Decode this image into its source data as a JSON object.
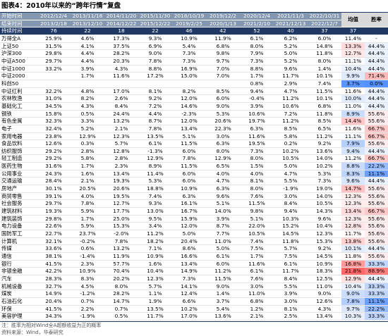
{
  "title": "图表4：2010年以来的“跨年行情”复盘",
  "table": {
    "columns": [
      "开始时间",
      "2012/12/4",
      "2013/11/18",
      "2014/11/20",
      "2015/11/30",
      "2018/10/19",
      "2019/12/2",
      "2020/12/4",
      "2021/11/3",
      "2022/10/31",
      "均值",
      "胜率"
    ],
    "end_row": [
      "结束时间",
      "2013/2/18",
      "2013/12/10",
      "2014/12/22",
      "2015/12/22",
      "2019/2/25",
      "2020/1/13",
      "2021/2/10",
      "2021/12/13",
      "2022/12/7"
    ],
    "duration_row": [
      "持续时间",
      "76",
      "22",
      "18",
      "22",
      "46",
      "42",
      "52",
      "40",
      "37",
      "37"
    ],
    "rows": [
      [
        "万得全A",
        "25.9%",
        "4.6%",
        "17.3%",
        "9.3%",
        "10.9%",
        "11.9%",
        "6.1%",
        "6.2%",
        "6.0%",
        "11.4%",
        "-"
      ],
      [
        "上证50",
        "31.5%",
        "4.1%",
        "37.5%",
        "6.9%",
        "5.4%",
        "6.8%",
        "8.0%",
        "5.2%",
        "14.8%",
        "13.3%",
        "44.4%"
      ],
      [
        "沪深300",
        "29.8%",
        "4.4%",
        "28.2%",
        "9.0%",
        "7.3%",
        "9.8%",
        "7.9%",
        "5.0%",
        "11.8%",
        "12.7%",
        "44.4%"
      ],
      [
        "中证A500",
        "29.7%",
        "4.4%",
        "20.3%",
        "7.8%",
        "7.3%",
        "9.7%",
        "7.3%",
        "5.2%",
        "8.0%",
        "11.1%",
        "44.4%"
      ],
      [
        "中证1000",
        "33.2%",
        "3.9%",
        "4.3%",
        "8.8%",
        "16.9%",
        "7.0%",
        "8.8%",
        "9.6%",
        "1.4%",
        "10.4%",
        "44.4%"
      ],
      [
        "中证2000",
        null,
        "1.7%",
        "11.6%",
        "17.2%",
        "15.0%",
        "7.0%",
        "1.7%",
        "11.7%",
        "10.1%",
        "9.9%",
        "71.4%"
      ],
      [
        "科创50",
        null,
        null,
        null,
        null,
        null,
        null,
        "0.8%",
        "2.9%",
        "7.4%",
        "3.7%",
        "0.0%"
      ],
      [
        "中证红利",
        "32.2%",
        "4.8%",
        "17.0%",
        "8.1%",
        "8.2%",
        "8.5%",
        "9.4%",
        "4.7%",
        "11.5%",
        "11.6%",
        "44.4%"
      ],
      [
        "农林牧渔",
        "31.0%",
        "8.2%",
        "2.6%",
        "9.2%",
        "12.0%",
        "6.0%",
        "-0.4%",
        "11.2%",
        "10.1%",
        "10.0%",
        "44.4%"
      ],
      [
        "基础化工",
        "34.5%",
        "4.3%",
        "8.4%",
        "7.2%",
        "14.6%",
        "9.0%",
        "3.9%",
        "10.6%",
        "6.8%",
        "11.0%",
        "44.4%"
      ],
      [
        "钢铁",
        "15.8%",
        "0.5%",
        "24.4%",
        "4.4%",
        "-2.3%",
        "5.3%",
        "10.6%",
        "7.2%",
        "11.8%",
        "8.9%",
        "55.6%"
      ],
      [
        "有色金属",
        "32.3%",
        "3.3%",
        "13.2%",
        "8.7%",
        "12.0%",
        "20.6%",
        "19.7%",
        "11.2%",
        "8.5%",
        "14.4%",
        "55.6%"
      ],
      [
        "电子",
        "32.4%",
        "5.2%",
        "2.1%",
        "7.8%",
        "13.4%",
        "22.3%",
        "6.3%",
        "8.5%",
        "6.5%",
        "11.6%",
        "66.7%"
      ],
      [
        "家用电器",
        "23.8%",
        "12.9%",
        "12.3%",
        "13.5%",
        "5.1%",
        "3.0%",
        "11.6%",
        "5.8%",
        "11.2%",
        "11.1%",
        "66.7%"
      ],
      [
        "食品饮料",
        "12.6%",
        "0.3%",
        "5.7%",
        "6.1%",
        "11.5%",
        "6.3%",
        "19.5%",
        "0.2%",
        "9.2%",
        "7.9%",
        "55.6%"
      ],
      [
        "纺织服饰",
        "29.2%",
        "2.8%",
        "12.8%",
        "-1.3%",
        "6.0%",
        "8.0%",
        "7.3%",
        "10.2%",
        "13.6%",
        "9.4%",
        "44.4%"
      ],
      [
        "轻工制造",
        "29.2%",
        "5.8%",
        "2.8%",
        "12.9%",
        "7.8%",
        "12.9%",
        "8.0%",
        "10.5%",
        "14.0%",
        "11.2%",
        "66.7%"
      ],
      [
        "医药生物",
        "31.6%",
        "1.7%",
        "2.3%",
        "8.9%",
        "11.5%",
        "6.5%",
        "1.5%",
        "5.0%",
        "10.2%",
        "8.8%",
        "22.2%"
      ],
      [
        "公用事业",
        "24.3%",
        "1.6%",
        "13.4%",
        "11.4%",
        "6.0%",
        "4.0%",
        "4.0%",
        "4.7%",
        "5.3%",
        "8.3%",
        "11.1%"
      ],
      [
        "交通运输",
        "28.4%",
        "2.1%",
        "19.3%",
        "5.3%",
        "6.0%",
        "4.7%",
        "8.1%",
        "5.5%",
        "7.3%",
        "9.6%",
        "44.4%"
      ],
      [
        "房地产",
        "30.1%",
        "20.5%",
        "20.6%",
        "18.8%",
        "10.9%",
        "6.3%",
        "8.0%",
        "-1.9%",
        "19.0%",
        "14.7%",
        "55.6%"
      ],
      [
        "商贸零售",
        "39.1%",
        "4.0%",
        "19.5%",
        "7.4%",
        "6.3%",
        "9.6%",
        "7.6%",
        "3.0%",
        "14.0%",
        "12.3%",
        "55.6%"
      ],
      [
        "社会服务",
        "29.7%",
        "7.8%",
        "12.7%",
        "9.3%",
        "16.1%",
        "5.1%",
        "11.5%",
        "8.4%",
        "10.5%",
        "12.3%",
        "55.6%"
      ],
      [
        "建筑材料",
        "19.3%",
        "5.9%",
        "17.7%",
        "13.0%",
        "16.7%",
        "14.0%",
        "9.8%",
        "9.4%",
        "14.3%",
        "13.4%",
        "66.7%"
      ],
      [
        "建筑装饰",
        "29.8%",
        "1.7%",
        "25.0%",
        "9.5%",
        "15.9%",
        "3.9%",
        "5.1%",
        "10.3%",
        "9.6%",
        "12.3%",
        "55.6%"
      ],
      [
        "电力设备",
        "22.6%",
        "5.9%",
        "15.3%",
        "3.4%",
        "12.0%",
        "8.7%",
        "22.0%",
        "15.2%",
        "10.4%",
        "12.8%",
        "55.6%"
      ],
      [
        "国防军工",
        "22.7%",
        "23.7%",
        "-2.0%",
        "11.2%",
        "5.0%",
        "7.7%",
        "10.5%",
        "14.5%",
        "12.3%",
        "11.7%",
        "55.6%"
      ],
      [
        "计算机",
        "32.1%",
        "-0.2%",
        "7.8%",
        "18.2%",
        "20.4%",
        "11.0%",
        "7.4%",
        "11.8%",
        "15.3%",
        "13.8%",
        "55.6%"
      ],
      [
        "传媒",
        "33.6%",
        "0.6%",
        "13.2%",
        "7.1%",
        "8.6%",
        "5.0%",
        "7.5%",
        "5.7%",
        "9.2%",
        "10.1%",
        "44.4%"
      ],
      [
        "通信",
        "38.1%",
        "-1.4%",
        "11.9%",
        "10.9%",
        "16.6%",
        "6.1%",
        "1.7%",
        "7.5%",
        "14.5%",
        "11.8%",
        "55.6%"
      ],
      [
        "银行",
        "41.5%",
        "2.3%",
        "57.7%",
        "1.6%",
        "13.4%",
        "6.0%",
        "11.6%",
        "6.1%",
        "10.9%",
        "16.8%",
        "33.3%"
      ],
      [
        "非银金融",
        "42.2%",
        "10.9%",
        "70.4%",
        "10.4%",
        "14.9%",
        "11.2%",
        "6.1%",
        "11.7%",
        "18.3%",
        "21.8%",
        "88.9%"
      ],
      [
        "汽车",
        "28.3%",
        "8.3%",
        "20.2%",
        "12.3%",
        "7.3%",
        "11.5%",
        "7.6%",
        "8.4%",
        "12.5%",
        "12.9%",
        "44.4%"
      ],
      [
        "机械设备",
        "32.7%",
        "4.5%",
        "8.0%",
        "5.7%",
        "14.1%",
        "9.0%",
        "3.0%",
        "5.5%",
        "11.0%",
        "10.4%",
        "33.3%"
      ],
      [
        "煤炭",
        "14.9%",
        "-1.2%",
        "28.2%",
        "1.1%",
        "12.4%",
        "1.4%",
        "11.0%",
        "3.9%",
        "9.0%",
        "9.0%",
        "33.3%"
      ],
      [
        "石油石化",
        "20.4%",
        "0.7%",
        "14.7%",
        "1.9%",
        "6.6%",
        "3.7%",
        "6.8%",
        "3.0%",
        "12.6%",
        "7.8%",
        "11.1%"
      ],
      [
        "环保",
        "41.5%",
        "2.2%",
        "0.7%",
        "13.5%",
        "10.2%",
        "5.4%",
        "1.2%",
        "8.1%",
        "4.3%",
        "9.7%",
        "22.2%"
      ],
      [
        "美容护理",
        "34.3%",
        "-1.9%",
        "0.5%",
        "11.7%",
        "17.0%",
        "13.6%",
        "2.1%",
        "2.5%",
        "13.4%",
        "10.3%",
        "33.3%"
      ]
    ]
  },
  "notes": [
    "注：胜率为相对Wind全A超额收益为正的概率",
    "资料来源：Wind，华泰研究"
  ]
}
